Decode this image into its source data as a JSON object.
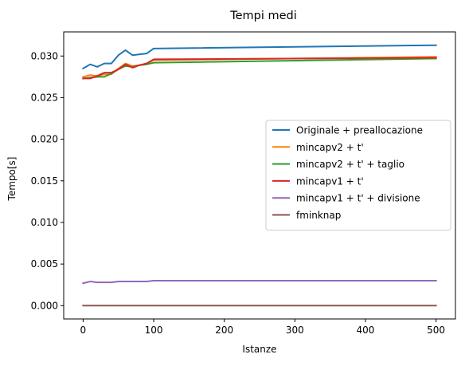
{
  "chart_data": {
    "type": "line",
    "title": "Tempi medi",
    "xlabel": "Istanze",
    "ylabel": "Tempo[s]",
    "xlim": [
      -27.5,
      527.5
    ],
    "ylim": [
      -0.0016,
      0.0329
    ],
    "xticks": [
      0,
      100,
      200,
      300,
      400,
      500
    ],
    "xtick_labels": [
      "0",
      "100",
      "200",
      "300",
      "400",
      "500"
    ],
    "yticks": [
      0.0,
      0.005,
      0.01,
      0.015,
      0.02,
      0.025,
      0.03
    ],
    "ytick_labels": [
      "0.000",
      "0.005",
      "0.010",
      "0.015",
      "0.020",
      "0.025",
      "0.030"
    ],
    "grid": false,
    "legend_position": "center-right",
    "x": [
      0,
      10,
      20,
      30,
      40,
      50,
      60,
      70,
      80,
      90,
      100,
      500
    ],
    "series": [
      {
        "name": "Originale + preallocazione",
        "color": "#1f77b4",
        "values": [
          0.0285,
          0.029,
          0.0287,
          0.0291,
          0.0291,
          0.0301,
          0.0307,
          0.0301,
          0.0302,
          0.0303,
          0.0309,
          0.0313
        ]
      },
      {
        "name": "mincapv2 + t'",
        "color": "#ff7f0e",
        "values": [
          0.0275,
          0.0277,
          0.0276,
          0.0278,
          0.0278,
          0.0285,
          0.0291,
          0.0288,
          0.0289,
          0.0291,
          0.0295,
          0.0299
        ]
      },
      {
        "name": "mincapv2 + t' + taglio",
        "color": "#2ca02c",
        "values": [
          0.0273,
          0.0274,
          0.0275,
          0.0275,
          0.0279,
          0.0284,
          0.0288,
          0.0287,
          0.0289,
          0.029,
          0.0292,
          0.0297
        ]
      },
      {
        "name": "mincapv1 + t'",
        "color": "#d62728",
        "values": [
          0.0273,
          0.0273,
          0.0276,
          0.028,
          0.028,
          0.0284,
          0.029,
          0.0286,
          0.0289,
          0.0291,
          0.0296,
          0.0298
        ]
      },
      {
        "name": "mincapv1 + t' + divisione",
        "color": "#9467bd",
        "values": [
          0.0027,
          0.0029,
          0.0028,
          0.0028,
          0.0028,
          0.0029,
          0.0029,
          0.0029,
          0.0029,
          0.0029,
          0.003,
          0.003
        ]
      },
      {
        "name": "fminknap",
        "color": "#8c564b",
        "values": [
          0.0,
          0.0,
          0.0,
          0.0,
          0.0,
          0.0,
          0.0,
          0.0,
          0.0,
          0.0,
          0.0,
          0.0
        ]
      }
    ]
  }
}
